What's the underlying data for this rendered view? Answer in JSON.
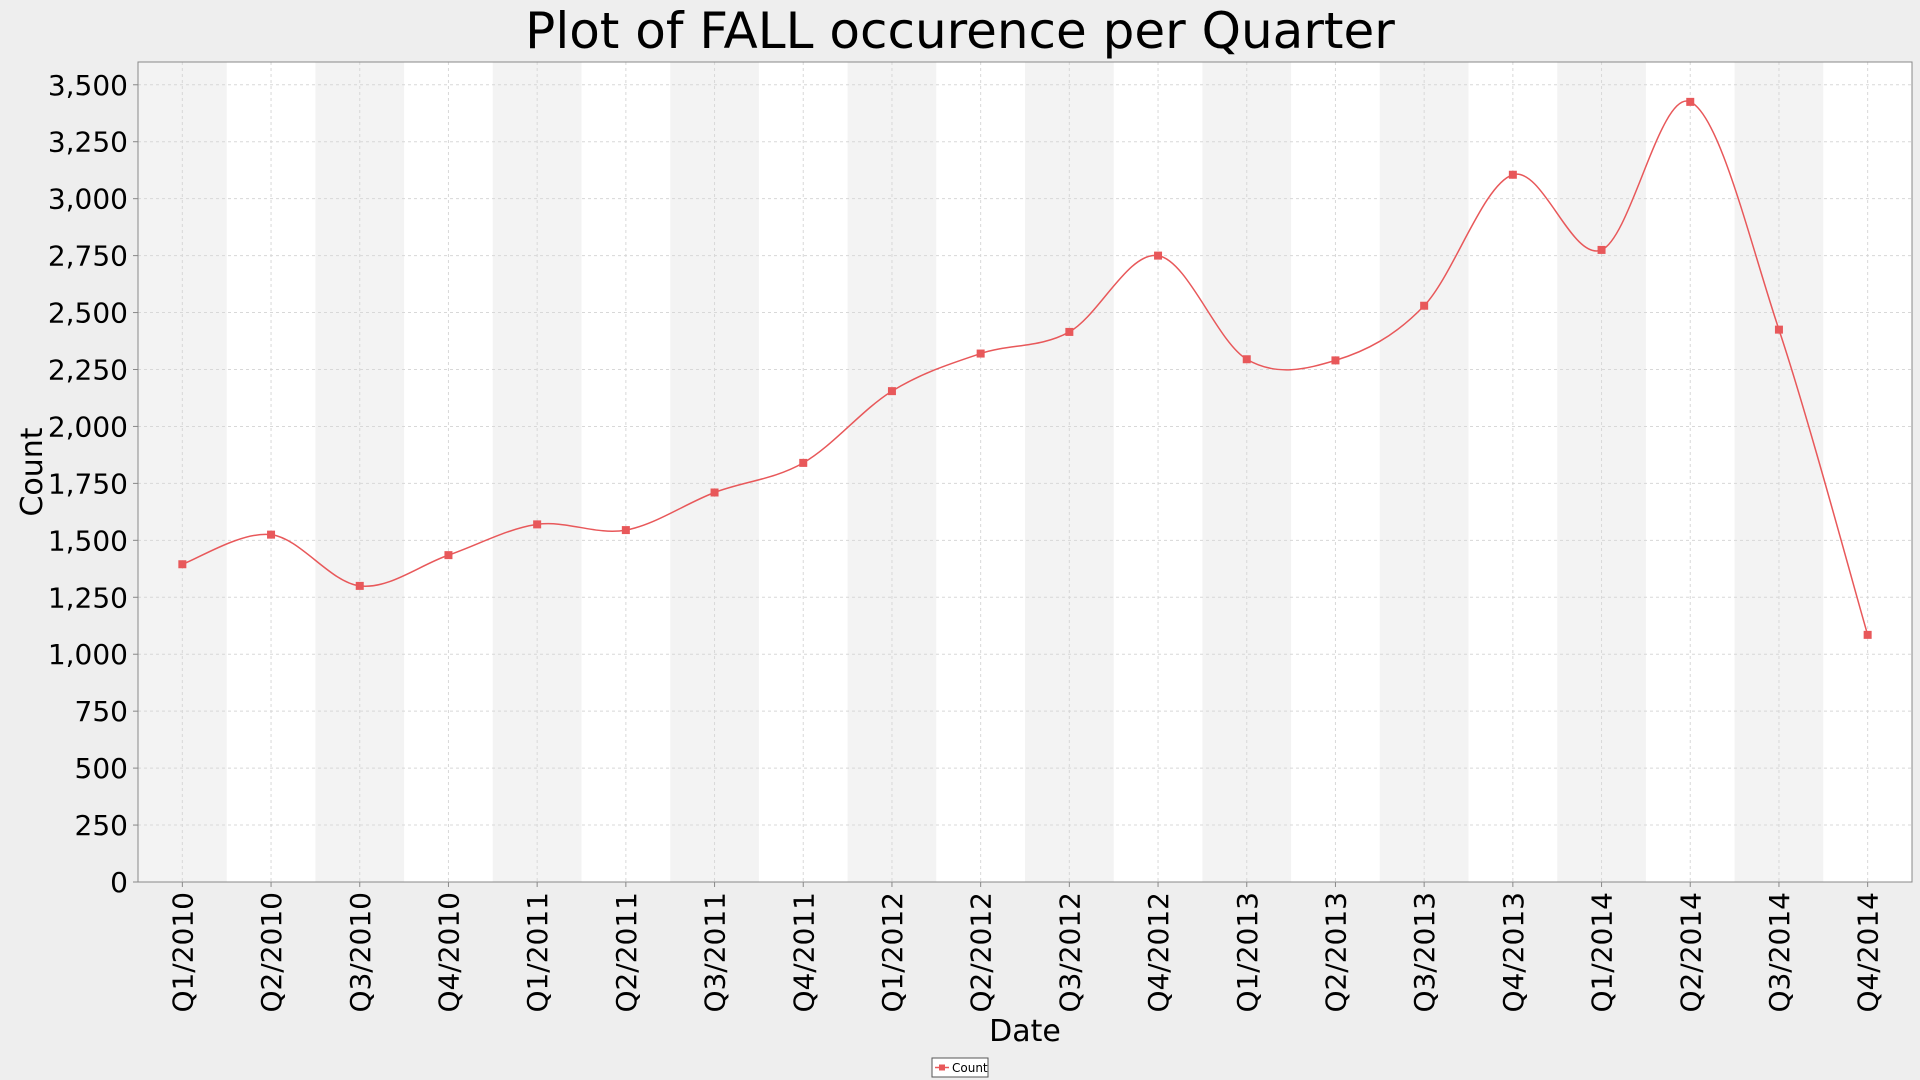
{
  "chart_data": {
    "type": "line",
    "title": "Plot of FALL occurence per Quarter",
    "xlabel": "Date",
    "ylabel": "Count",
    "categories": [
      "Q1/2010",
      "Q2/2010",
      "Q3/2010",
      "Q4/2010",
      "Q1/2011",
      "Q2/2011",
      "Q3/2011",
      "Q4/2011",
      "Q1/2012",
      "Q2/2012",
      "Q3/2012",
      "Q4/2012",
      "Q1/2013",
      "Q2/2013",
      "Q3/2013",
      "Q4/2013",
      "Q1/2014",
      "Q2/2014",
      "Q3/2014",
      "Q4/2014"
    ],
    "series": [
      {
        "name": "Count",
        "color": "#e8585a",
        "values": [
          1395,
          1525,
          1300,
          1435,
          1570,
          1545,
          1710,
          1840,
          2155,
          2320,
          2415,
          2750,
          2295,
          2290,
          2530,
          3105,
          2775,
          3425,
          2425,
          1085
        ]
      }
    ],
    "ylim": [
      0,
      3600
    ],
    "yticks": [
      0,
      250,
      500,
      750,
      1000,
      1250,
      1500,
      1750,
      2000,
      2250,
      2500,
      2750,
      3000,
      3250,
      3500
    ],
    "ytick_labels": [
      "0",
      "250",
      "500",
      "750",
      "1,000",
      "1,250",
      "1,500",
      "1,750",
      "2,000",
      "2,250",
      "2,500",
      "2,750",
      "3,000",
      "3,250",
      "3,500"
    ],
    "grid": true,
    "alternating_bands": true,
    "legend_position": "bottom-center",
    "smoothed": true
  }
}
